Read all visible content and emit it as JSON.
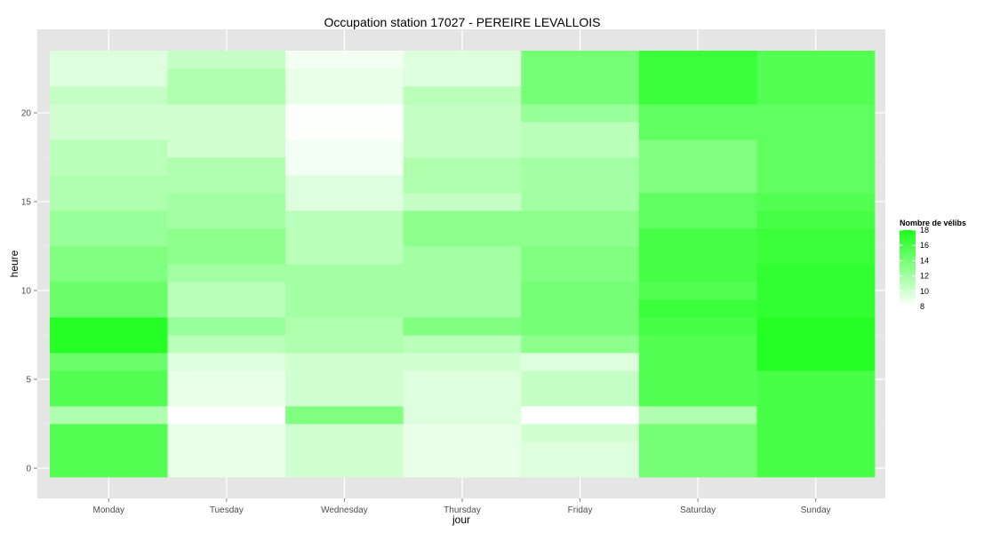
{
  "chart_data": {
    "type": "heatmap",
    "title": "Occupation station 17027 - PEREIRE LEVALLOIS",
    "xlabel": "jour",
    "ylabel": "heure",
    "categories": [
      "Monday",
      "Tuesday",
      "Wednesday",
      "Thursday",
      "Friday",
      "Saturday",
      "Sunday"
    ],
    "y_ticks": [
      0,
      5,
      10,
      15,
      20
    ],
    "y_range": [
      0,
      23
    ],
    "grid": true,
    "legend": {
      "title": "Nombre de vélibs",
      "placement": "right",
      "ticks": [
        8,
        10,
        12,
        14,
        16,
        18
      ],
      "low_color": "#ffffff",
      "high_color": "#1aff1a"
    },
    "series": [
      {
        "day": "Monday",
        "hourly": [
          15.5,
          15.5,
          15.5,
          11.5,
          15.5,
          15.5,
          14.5,
          17.5,
          17.5,
          14.5,
          14.5,
          13.5,
          13.5,
          12.5,
          12.5,
          11.5,
          11.5,
          11.0,
          11.0,
          10.0,
          10.0,
          10.5,
          9.5,
          9.5
        ]
      },
      {
        "day": "Tuesday",
        "hourly": [
          9.0,
          9.0,
          9.0,
          8.0,
          9.0,
          9.0,
          9.5,
          11.0,
          12.5,
          11.0,
          11.0,
          12.0,
          13.0,
          13.0,
          12.0,
          12.0,
          11.5,
          11.5,
          10.0,
          10.0,
          10.0,
          11.5,
          11.5,
          10.5
        ]
      },
      {
        "day": "Wednesday",
        "hourly": [
          10.0,
          10.0,
          10.0,
          13.5,
          10.0,
          10.0,
          10.0,
          11.5,
          11.5,
          12.0,
          12.0,
          12.0,
          11.0,
          11.0,
          11.0,
          9.5,
          9.5,
          8.5,
          8.5,
          8.1,
          8.1,
          9.0,
          9.0,
          8.5
        ]
      },
      {
        "day": "Thursday",
        "hourly": [
          9.0,
          9.0,
          9.0,
          9.5,
          9.5,
          9.5,
          10.0,
          11.0,
          13.5,
          12.0,
          12.0,
          12.0,
          12.0,
          13.0,
          13.0,
          10.5,
          11.5,
          11.5,
          10.5,
          10.5,
          10.5,
          11.0,
          9.5,
          9.5
        ]
      },
      {
        "day": "Friday",
        "hourly": [
          9.5,
          9.5,
          10.0,
          8.0,
          10.5,
          10.5,
          9.5,
          13.0,
          14.0,
          14.0,
          14.0,
          13.5,
          13.5,
          13.0,
          13.0,
          12.0,
          12.0,
          12.0,
          11.0,
          11.0,
          12.5,
          14.0,
          14.0,
          14.0
        ]
      },
      {
        "day": "Saturday",
        "hourly": [
          14.0,
          14.0,
          14.0,
          11.5,
          15.5,
          15.5,
          15.5,
          15.5,
          16.0,
          16.5,
          15.5,
          16.0,
          16.0,
          16.0,
          15.0,
          15.0,
          13.5,
          13.5,
          13.5,
          15.0,
          15.0,
          16.5,
          16.5,
          16.5
        ]
      },
      {
        "day": "Sunday",
        "hourly": [
          16.0,
          16.0,
          16.0,
          16.0,
          16.0,
          16.0,
          17.5,
          17.5,
          17.5,
          17.0,
          17.0,
          17.0,
          16.5,
          16.5,
          16.0,
          15.5,
          15.0,
          15.0,
          15.0,
          15.0,
          15.0,
          15.5,
          15.5,
          15.5
        ]
      }
    ]
  }
}
